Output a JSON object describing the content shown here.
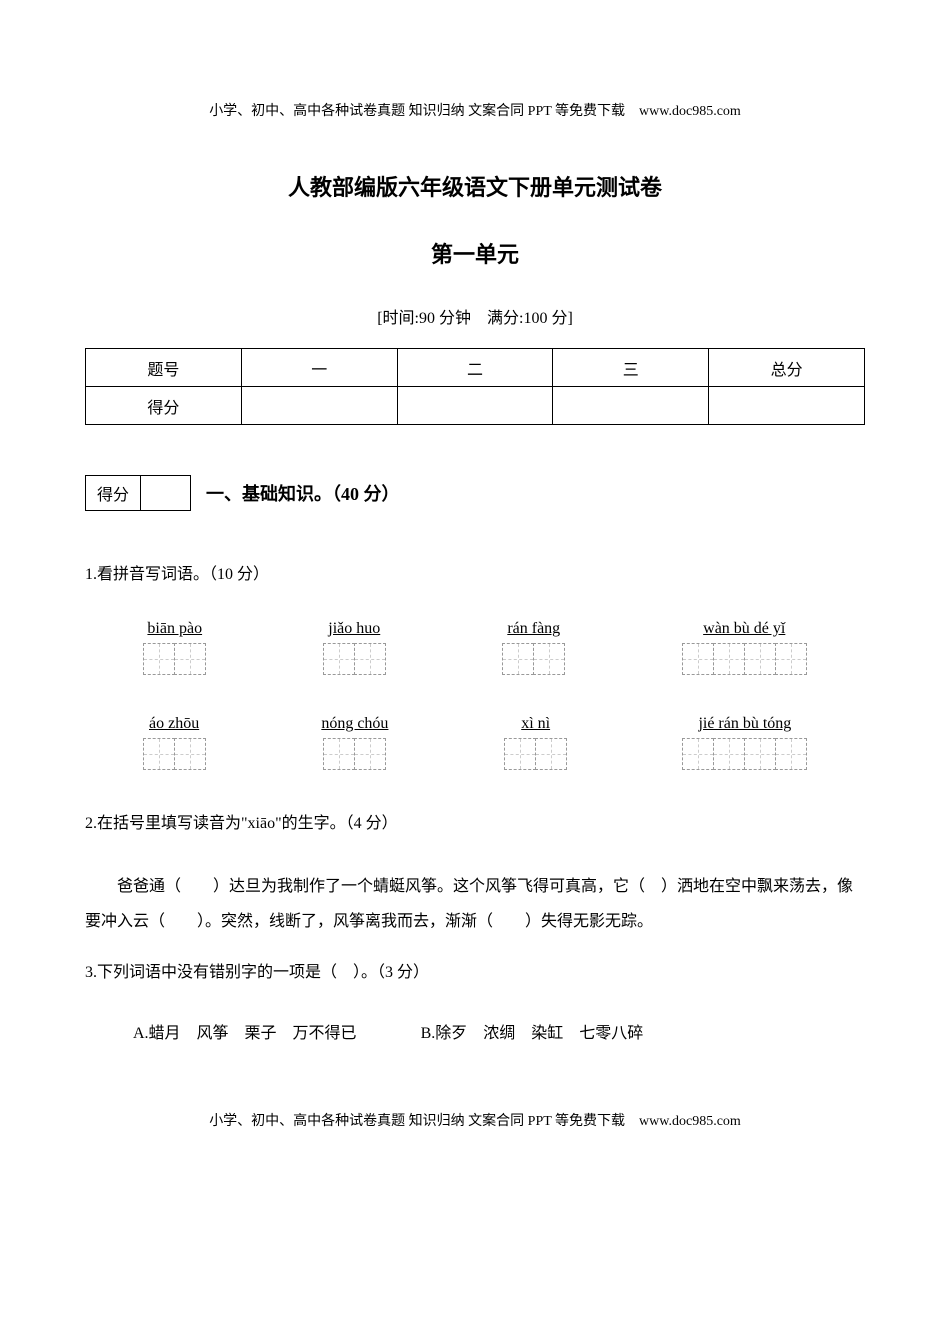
{
  "header": "小学、初中、高中各种试卷真题 知识归纳 文案合同 PPT 等免费下载　www.doc985.com",
  "title": "人教部编版六年级语文下册单元测试卷",
  "subtitle": "第一单元",
  "time_info": "[时间:90 分钟　满分:100 分]",
  "score_table": {
    "headers": [
      "题号",
      "一",
      "二",
      "三",
      "总分"
    ],
    "row_label": "得分"
  },
  "score_box_label": "得分",
  "section_title": "一、基础知识。（40 分）",
  "q1": {
    "text": "1.看拼音写词语。（10 分）",
    "row1": [
      {
        "pinyin": "biān pào",
        "boxes": 2
      },
      {
        "pinyin": "jiǎo huo",
        "boxes": 2
      },
      {
        "pinyin": "rán fàng",
        "boxes": 2
      },
      {
        "pinyin": "wàn bù dé yǐ",
        "boxes": 4
      }
    ],
    "row2": [
      {
        "pinyin": "áo zhōu",
        "boxes": 2
      },
      {
        "pinyin": "nóng chóu",
        "boxes": 2
      },
      {
        "pinyin": "xì nì",
        "boxes": 2
      },
      {
        "pinyin": "jié rán bù tóng",
        "boxes": 4
      }
    ]
  },
  "q2": {
    "text": "2.在括号里填写读音为\"xiāo\"的生字。（4 分）",
    "body": "爸爸通（　　）达旦为我制作了一个蜻蜓风筝。这个风筝飞得可真高，它（　）洒地在空中飘来荡去，像要冲入云（　　）。突然，线断了，风筝离我而去，渐渐（　　）失得无影无踪。"
  },
  "q3": {
    "text": "3.下列词语中没有错别字的一项是（　）。（3 分）",
    "options_a": "A.蜡月　风筝　栗子　万不得已",
    "options_b": "B.除歹　浓绸　染缸　七零八碎"
  },
  "footer": "小学、初中、高中各种试卷真题 知识归纳 文案合同 PPT 等免费下载　www.doc985.com"
}
